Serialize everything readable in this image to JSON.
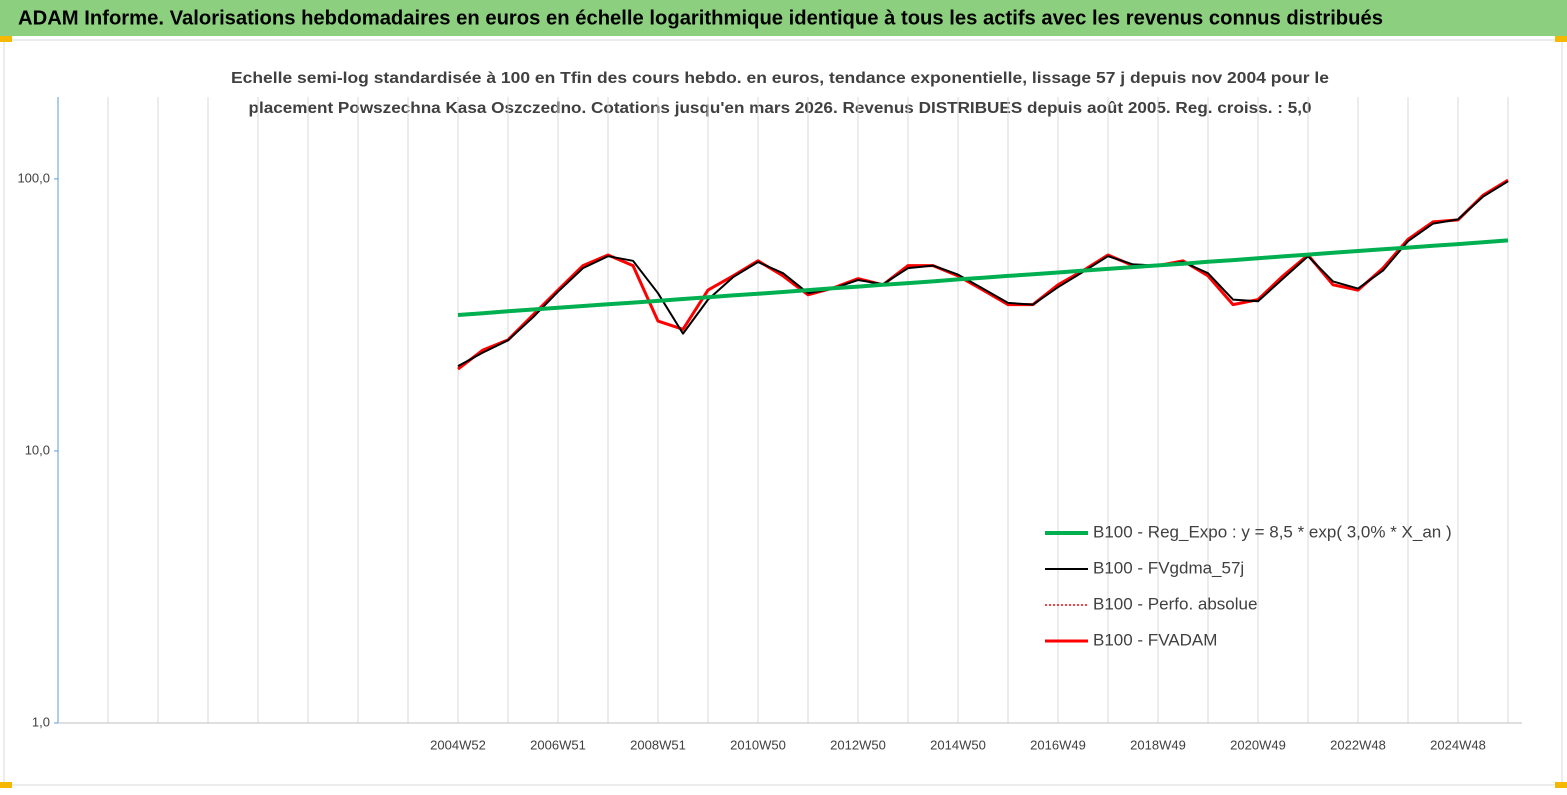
{
  "header": {
    "title": "ADAM Informe. Valorisations hebdomadaires en euros en échelle logarithmique identique à tous les actifs avec les revenus connus distribués"
  },
  "chart_data": {
    "type": "line",
    "title": [
      "Echelle semi-log standardisée à 100 en Tfin des cours hebdo. en euros, tendance exponentielle, lissage 57 j depuis nov 2004 pour le",
      "placement Powszechna Kasa Oszczedno. Cotations jusqu'en mars 2026. Revenus DISTRIBUES depuis août 2005. Reg. croiss. : 5,0"
    ],
    "log_scale": true,
    "ylim": [
      1,
      200
    ],
    "yticks": [
      {
        "value": 1,
        "label": "1,0"
      },
      {
        "value": 10,
        "label": "10,0"
      },
      {
        "value": 100,
        "label": "100,0"
      }
    ],
    "categories": [
      null,
      null,
      null,
      null,
      null,
      null,
      null,
      null,
      null,
      null,
      null,
      null,
      null,
      null,
      null,
      null,
      "2004W52",
      null,
      null,
      null,
      "2006W51",
      null,
      null,
      null,
      "2008W51",
      null,
      null,
      null,
      "2010W50",
      null,
      null,
      null,
      "2012W50",
      null,
      null,
      null,
      "2014W50",
      null,
      null,
      null,
      "2016W49",
      null,
      null,
      null,
      "2018W49",
      null,
      null,
      null,
      "2020W49",
      null,
      null,
      null,
      "2022W48",
      null,
      null,
      null,
      "2024W48",
      null,
      null
    ],
    "series": [
      {
        "name": "B100 - Reg_Expo : y = 8,5 *  exp( 3,0% *  X_an )",
        "color": "#00b050",
        "width": 4,
        "style": "solid",
        "values": [
          null,
          null,
          null,
          null,
          null,
          null,
          null,
          null,
          null,
          null,
          null,
          null,
          null,
          null,
          null,
          null,
          31.6,
          32.1,
          32.6,
          33.1,
          33.6,
          34.1,
          34.6,
          35.1,
          35.6,
          36.2,
          36.7,
          37.3,
          37.8,
          38.4,
          39.0,
          39.6,
          40.2,
          40.8,
          41.4,
          42.0,
          42.7,
          43.3,
          44.0,
          44.6,
          45.3,
          46.0,
          46.7,
          47.4,
          48.1,
          48.8,
          49.6,
          50.3,
          51.1,
          51.9,
          52.7,
          53.5,
          54.3,
          55.1,
          55.9,
          56.8,
          57.6,
          58.5,
          59.4
        ]
      },
      {
        "name": "B100 - FVgdma_57j",
        "color": "#000000",
        "width": 2,
        "style": "solid",
        "values": [
          null,
          null,
          null,
          null,
          null,
          null,
          null,
          null,
          null,
          null,
          null,
          null,
          null,
          null,
          null,
          null,
          20.5,
          23,
          25.5,
          31,
          38.5,
          47,
          52,
          50,
          38,
          27,
          36,
          43.5,
          49.5,
          45,
          38,
          39.5,
          42.5,
          41,
          47,
          48,
          44.5,
          39.5,
          35,
          34.5,
          40,
          45.5,
          52,
          48.5,
          48,
          49.5,
          45,
          36,
          35.5,
          43,
          52,
          42,
          39.5,
          46,
          59,
          68.5,
          71,
          86,
          98
        ]
      },
      {
        "name": "B100 - Perfo. absolue",
        "color": "#ff0000",
        "width": 1.5,
        "style": "dotted",
        "values": [
          null,
          null,
          null,
          null,
          null,
          null,
          null,
          null,
          null,
          null,
          null,
          null,
          null,
          null,
          null,
          null,
          20,
          23.5,
          25.6,
          31.6,
          39,
          48,
          52.5,
          48,
          30,
          28,
          39,
          44,
          50,
          44,
          37.5,
          39.7,
          43,
          40.8,
          48,
          48,
          44,
          39,
          34.5,
          34.5,
          40.8,
          46,
          52.5,
          48,
          48,
          50,
          44,
          34.5,
          36,
          44,
          52.5,
          40.8,
          39,
          47,
          60,
          69.5,
          70.7,
          87,
          99
        ]
      },
      {
        "name": "B100 - FVADAM",
        "color": "#ff0000",
        "width": 3,
        "style": "solid",
        "values": [
          null,
          null,
          null,
          null,
          null,
          null,
          null,
          null,
          null,
          null,
          null,
          null,
          null,
          null,
          null,
          null,
          20,
          23.5,
          25.6,
          31.6,
          39,
          48,
          52.5,
          48,
          30,
          28,
          39,
          44,
          50,
          44,
          37.5,
          39.7,
          43,
          40.8,
          48,
          48,
          44,
          39,
          34.5,
          34.5,
          40.8,
          46,
          52.5,
          48,
          48,
          50,
          44,
          34.5,
          36,
          44,
          52.5,
          40.8,
          39,
          47,
          60,
          69.5,
          70.7,
          87,
          99
        ]
      }
    ]
  }
}
